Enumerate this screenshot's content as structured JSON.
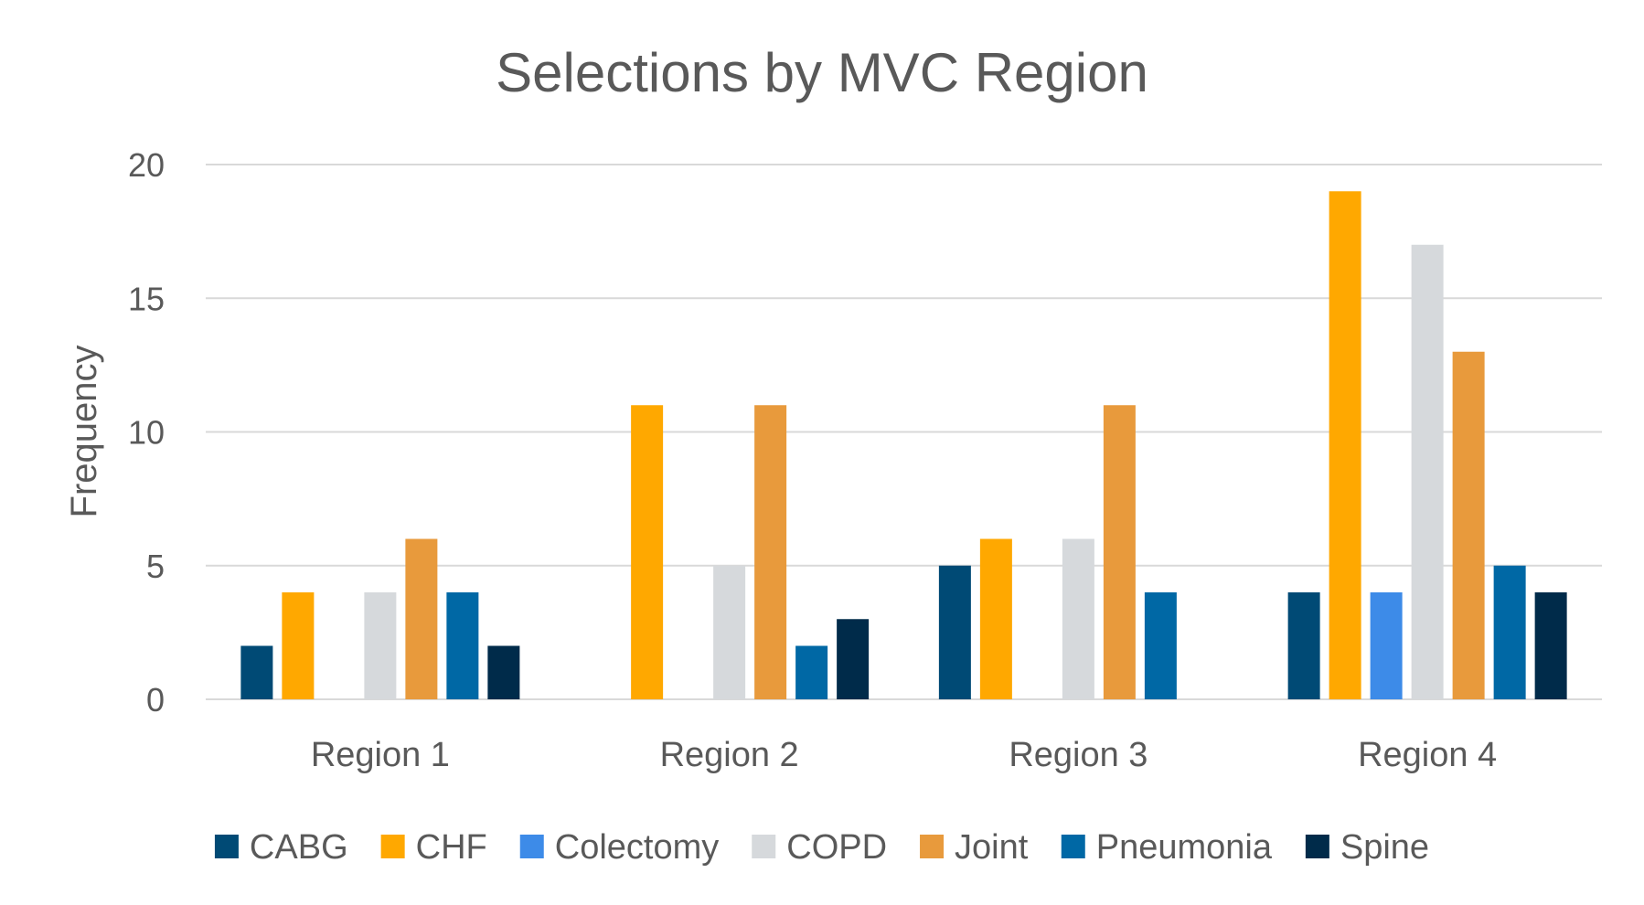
{
  "chart_data": {
    "type": "bar",
    "title": "Selections by MVC Region",
    "xlabel": "",
    "ylabel": "Frequency",
    "ylim": [
      0,
      20
    ],
    "yticks": [
      0,
      5,
      10,
      15,
      20
    ],
    "grid": true,
    "legend_position": "bottom",
    "categories": [
      "Region 1",
      "Region 2",
      "Region 3",
      "Region 4"
    ],
    "series": [
      {
        "name": "CABG",
        "color": "#004A75",
        "values": [
          2,
          0,
          5,
          4
        ]
      },
      {
        "name": "CHF",
        "color": "#FFA800",
        "values": [
          4,
          11,
          6,
          19
        ]
      },
      {
        "name": "Colectomy",
        "color": "#3D8BE8",
        "values": [
          0,
          0,
          0,
          4
        ]
      },
      {
        "name": "COPD",
        "color": "#D6D9DC",
        "values": [
          4,
          5,
          6,
          17
        ]
      },
      {
        "name": "Joint",
        "color": "#E89A3C",
        "values": [
          6,
          11,
          11,
          13
        ]
      },
      {
        "name": "Pneumonia",
        "color": "#0068A5",
        "values": [
          4,
          2,
          4,
          5
        ]
      },
      {
        "name": "Spine",
        "color": "#002B4A",
        "values": [
          2,
          3,
          0,
          4
        ]
      }
    ]
  }
}
